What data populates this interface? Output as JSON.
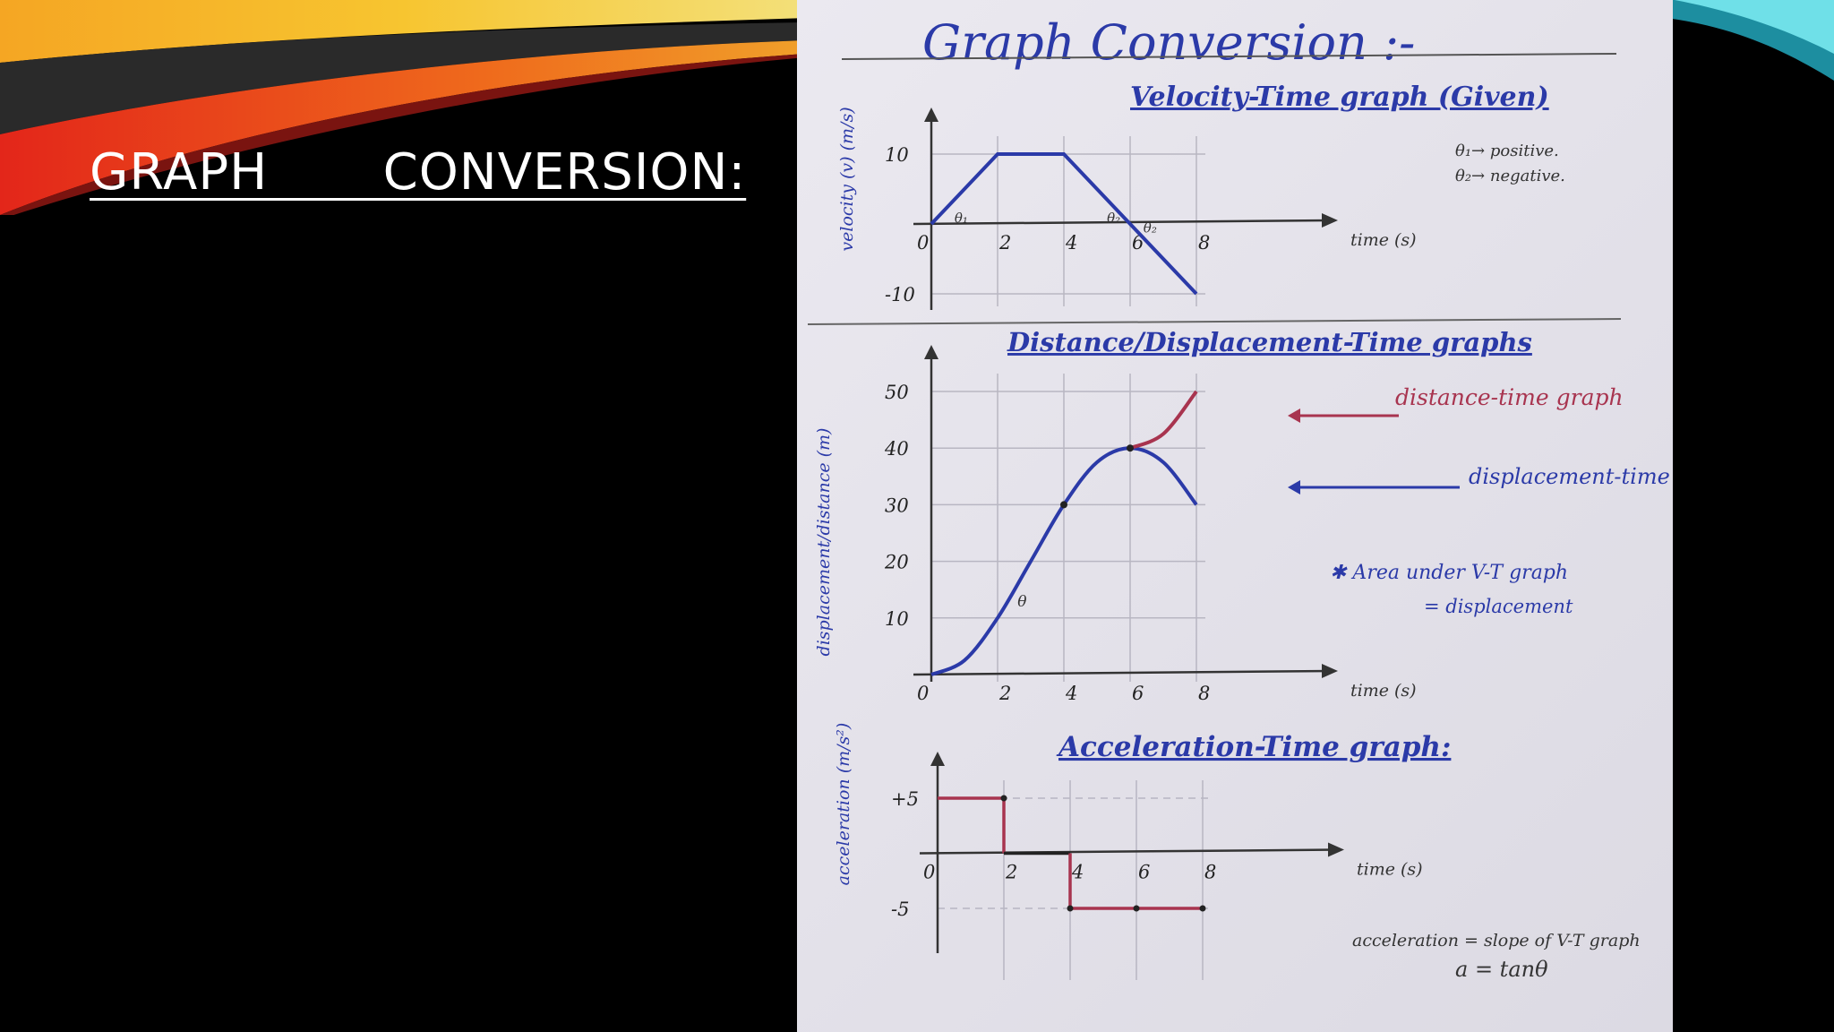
{
  "slide": {
    "title": "GRAPH   CONVERSION:"
  },
  "paper": {
    "heading": "Graph Conversion :-",
    "notes": {
      "theta1": "θ₁→ positive.",
      "theta2": "θ₂→ negative.",
      "area": "✱ Area under V-T graph",
      "area2": "= displacement",
      "accel": "acceleration = slope of V-T graph",
      "accel2": "a = tanθ"
    }
  },
  "colors": {
    "ink_blue": "#2b3aa8",
    "ink_red": "#a8344f",
    "banner_orange": "#f08a1a",
    "banner_red": "#d01d10",
    "banner_teal": "#39c6d0"
  },
  "chart_data": [
    {
      "type": "line",
      "title": "Velocity-Time graph (Given)",
      "ylabel": "velocity (v) (m/s)",
      "xlabel": "time (s)",
      "x": [
        0,
        2,
        4,
        8
      ],
      "xticks": [
        "0",
        "2",
        "4",
        "6",
        "8"
      ],
      "yticks": [
        "10",
        "-10"
      ],
      "xlim": [
        0,
        8
      ],
      "ylim": [
        -10,
        10
      ],
      "series": [
        {
          "values": [
            [
              0,
              0
            ],
            [
              2,
              10
            ],
            [
              4,
              10
            ],
            [
              8,
              -10
            ]
          ]
        }
      ],
      "annotations": [
        "θ₁",
        "θ₂",
        "θ₂"
      ]
    },
    {
      "type": "line",
      "title": "Distance/Displacement-Time graphs",
      "ylabel": "displacement/distance (m)",
      "xlabel": "time (s)",
      "xticks": [
        "0",
        "2",
        "4",
        "6",
        "8"
      ],
      "yticks": [
        "10",
        "20",
        "30",
        "40",
        "50"
      ],
      "xlim": [
        0,
        8
      ],
      "ylim": [
        0,
        50
      ],
      "series": [
        {
          "name": "distance-time graph",
          "values": [
            [
              6,
              40
            ],
            [
              7,
              42.5
            ],
            [
              8,
              50
            ]
          ]
        },
        {
          "name": "displacement-time graph",
          "values": [
            [
              0,
              0
            ],
            [
              1,
              2.5
            ],
            [
              2,
              10
            ],
            [
              3,
              20
            ],
            [
              4,
              30
            ],
            [
              5,
              37.5
            ],
            [
              6,
              40
            ],
            [
              7,
              37.5
            ],
            [
              8,
              30
            ]
          ]
        }
      ],
      "annotations": [
        "θ"
      ]
    },
    {
      "type": "line",
      "title": "Acceleration-Time graph:",
      "ylabel": "acceleration (m/s²)",
      "xlabel": "time (s)",
      "xticks": [
        "0",
        "2",
        "4",
        "6",
        "8"
      ],
      "yticks": [
        "+5",
        "-5"
      ],
      "xlim": [
        0,
        8
      ],
      "ylim": [
        -5,
        5
      ],
      "series": [
        {
          "values": [
            [
              0,
              5
            ],
            [
              2,
              5
            ],
            [
              2,
              0
            ],
            [
              4,
              0
            ],
            [
              4,
              -5
            ],
            [
              8,
              -5
            ]
          ]
        }
      ]
    }
  ]
}
